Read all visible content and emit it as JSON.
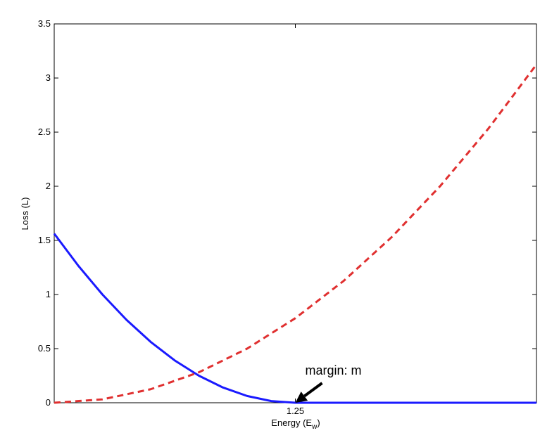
{
  "chart_data": {
    "type": "line",
    "title": "",
    "xlabel_main": "Energy (E",
    "xlabel_sub": "w",
    "xlabel_close": ")",
    "ylabel": "Loss (L)",
    "xlim": [
      0,
      2.5
    ],
    "ylim": [
      0,
      3.5
    ],
    "xticks": [
      1.25
    ],
    "xtick_labels": [
      "1.25"
    ],
    "yticks": [
      0,
      0.5,
      1,
      1.5,
      2,
      2.5,
      3,
      3.5
    ],
    "ytick_labels": [
      "0",
      "0.5",
      "1",
      "1.5",
      "2",
      "2.5",
      "3",
      "3.5"
    ],
    "grid": false,
    "series": [
      {
        "style": "solid",
        "color": "#1a1aff",
        "x": [
          0,
          0.125,
          0.25,
          0.375,
          0.5,
          0.625,
          0.75,
          0.875,
          1.0,
          1.125,
          1.25,
          1.5,
          1.75,
          2.0,
          2.25,
          2.5
        ],
        "y": [
          1.5625,
          1.2656,
          1.0,
          0.7656,
          0.5625,
          0.3906,
          0.25,
          0.1406,
          0.0625,
          0.0156,
          0,
          0,
          0,
          0,
          0,
          0
        ]
      },
      {
        "style": "dashed",
        "color": "#e03030",
        "x": [
          0,
          0.25,
          0.5,
          0.75,
          1.0,
          1.25,
          1.5,
          1.75,
          2.0,
          2.25,
          2.5
        ],
        "y": [
          0,
          0.03125,
          0.125,
          0.28125,
          0.5,
          0.78125,
          1.125,
          1.53125,
          2.0,
          2.53125,
          3.125
        ]
      }
    ],
    "annotation": {
      "text": "margin: m",
      "point": [
        1.25,
        0
      ]
    }
  }
}
